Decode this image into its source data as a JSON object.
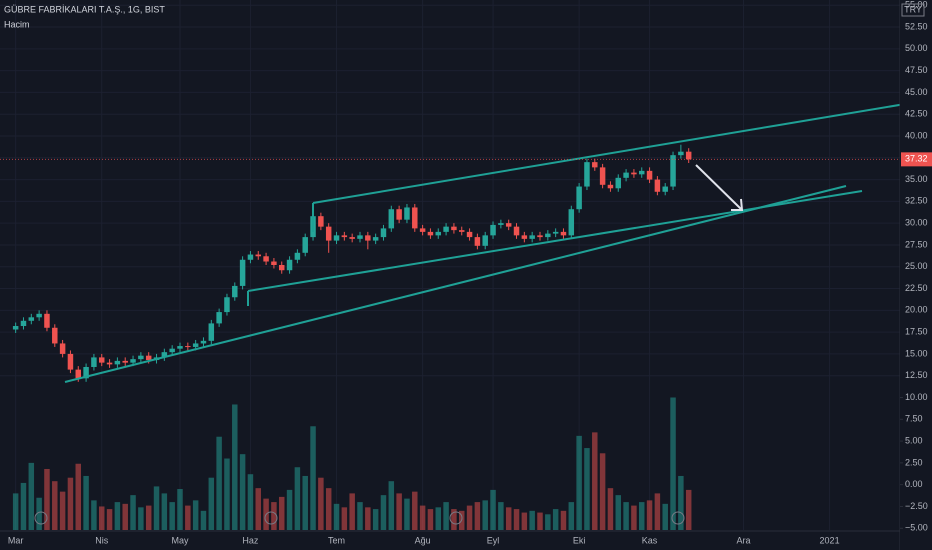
{
  "header": {
    "title": "GÜBRE FABRİKALARI T.A.Ş., 1G, BIST",
    "indicator": "Hacim",
    "currency": "TRY"
  },
  "chart_data": {
    "type": "candlestick",
    "up_color": "#26a69a",
    "down_color": "#ef5350",
    "grid": true,
    "open": [
      17.8,
      18.2,
      18.8,
      19.2,
      19.6,
      18.0,
      16.2,
      15.0,
      13.2,
      12.2,
      13.5,
      14.6,
      14.0,
      13.8,
      14.2,
      14.0,
      14.4,
      14.8,
      14.3,
      14.6,
      15.2,
      15.6,
      15.9,
      15.8,
      16.2,
      16.5,
      18.5,
      19.8,
      21.5,
      22.8,
      25.8,
      26.4,
      26.2,
      25.6,
      25.2,
      24.6,
      25.8,
      26.6,
      28.4,
      30.8,
      29.6,
      28.0,
      28.6,
      28.4,
      28.2,
      28.6,
      28.0,
      28.4,
      29.4,
      31.6,
      30.4,
      31.8,
      29.4,
      29.0,
      28.6,
      29.0,
      29.6,
      29.2,
      29.0,
      28.4,
      27.4,
      28.6,
      29.8,
      30.0,
      29.6,
      28.6,
      28.2,
      28.6,
      28.4,
      28.8,
      29.0,
      28.6,
      31.6,
      34.2,
      37.0,
      36.4,
      34.4,
      34.0,
      35.2,
      35.8,
      35.6,
      36.0,
      35.0,
      33.6,
      34.2,
      37.8,
      38.2
    ],
    "high": [
      18.6,
      19.2,
      19.6,
      20.0,
      20.0,
      18.4,
      16.6,
      15.4,
      13.6,
      13.9,
      15.0,
      15.0,
      14.4,
      14.6,
      14.6,
      14.8,
      15.2,
      15.2,
      15.0,
      15.6,
      16.0,
      16.3,
      16.3,
      16.6,
      16.9,
      18.9,
      20.2,
      21.9,
      23.2,
      26.2,
      26.8,
      26.8,
      26.6,
      26.0,
      25.6,
      26.2,
      27.0,
      28.8,
      32.0,
      31.2,
      30.0,
      29.0,
      29.0,
      28.8,
      29.0,
      29.0,
      28.8,
      29.8,
      32.0,
      32.0,
      32.2,
      32.2,
      29.8,
      29.4,
      29.4,
      30.0,
      30.0,
      29.6,
      29.4,
      28.8,
      29.0,
      30.2,
      30.4,
      30.4,
      30.0,
      29.0,
      29.0,
      29.0,
      29.2,
      29.4,
      29.4,
      32.0,
      34.6,
      37.4,
      37.4,
      36.8,
      34.8,
      35.6,
      36.2,
      36.2,
      36.4,
      36.4,
      35.4,
      34.6,
      38.2,
      39.0,
      38.6
    ],
    "low": [
      17.4,
      17.8,
      18.4,
      18.8,
      17.6,
      15.8,
      14.6,
      12.8,
      11.8,
      11.8,
      13.1,
      13.6,
      13.4,
      13.4,
      13.6,
      13.6,
      14.0,
      13.9,
      13.9,
      14.2,
      14.8,
      15.2,
      15.4,
      15.4,
      15.8,
      16.1,
      18.1,
      19.4,
      21.1,
      22.4,
      25.4,
      25.8,
      25.2,
      24.8,
      24.2,
      24.2,
      25.4,
      26.2,
      28.0,
      29.2,
      26.6,
      27.6,
      28.0,
      27.8,
      27.8,
      27.0,
      27.6,
      28.0,
      29.0,
      30.0,
      30.0,
      29.0,
      28.6,
      28.2,
      28.2,
      28.6,
      28.8,
      28.6,
      28.0,
      27.0,
      27.0,
      28.2,
      29.4,
      29.2,
      28.2,
      27.8,
      27.8,
      28.0,
      28.0,
      28.4,
      28.2,
      28.2,
      31.2,
      33.8,
      36.0,
      34.0,
      33.6,
      33.6,
      34.8,
      35.2,
      35.2,
      34.6,
      33.2,
      33.2,
      33.8,
      37.4,
      36.9
    ],
    "close": [
      18.2,
      18.8,
      19.2,
      19.6,
      18.0,
      16.2,
      15.0,
      13.2,
      12.2,
      13.5,
      14.6,
      14.0,
      13.8,
      14.2,
      14.0,
      14.4,
      14.8,
      14.3,
      14.6,
      15.2,
      15.6,
      15.9,
      15.8,
      16.2,
      16.5,
      18.5,
      19.8,
      21.5,
      22.8,
      25.8,
      26.4,
      26.2,
      25.6,
      25.2,
      24.6,
      25.8,
      26.6,
      28.4,
      30.8,
      29.6,
      28.0,
      28.6,
      28.4,
      28.2,
      28.6,
      28.0,
      28.4,
      29.4,
      31.6,
      30.4,
      31.8,
      29.4,
      29.0,
      28.6,
      29.0,
      29.6,
      29.2,
      29.0,
      28.4,
      27.4,
      28.6,
      29.8,
      30.0,
      29.6,
      28.6,
      28.2,
      28.6,
      28.4,
      28.8,
      29.0,
      28.6,
      31.6,
      34.2,
      37.0,
      36.4,
      34.4,
      34.0,
      35.2,
      35.8,
      35.6,
      36.0,
      35.0,
      33.6,
      34.2,
      37.8,
      38.2,
      37.32
    ],
    "volume": [
      -1.0,
      0.2,
      2.5,
      -1.5,
      1.8,
      0.4,
      -0.8,
      0.8,
      2.4,
      1.0,
      -1.8,
      -2.5,
      -2.8,
      -2.0,
      -2.2,
      -1.2,
      -2.6,
      -2.4,
      -0.2,
      -1.0,
      -2.0,
      -0.5,
      -2.4,
      -1.8,
      -3.0,
      0.8,
      5.5,
      3.0,
      9.2,
      3.5,
      1.2,
      -0.4,
      -1.6,
      -2.0,
      -1.4,
      -0.6,
      2.0,
      1.0,
      6.7,
      0.8,
      -0.4,
      -2.2,
      -2.6,
      -1.0,
      -2.0,
      -2.6,
      -2.8,
      -1.2,
      0.4,
      -1.0,
      -1.6,
      -0.8,
      -2.4,
      -2.8,
      -2.6,
      -2.0,
      -2.8,
      -3.0,
      -2.4,
      -2.0,
      -1.8,
      -0.6,
      -2.0,
      -2.6,
      -2.8,
      -3.2,
      -3.0,
      -3.2,
      -3.4,
      -2.8,
      -3.0,
      -2.0,
      5.6,
      4.2,
      6.0,
      3.6,
      -0.4,
      -1.2,
      -2.0,
      -2.4,
      -2.0,
      -1.8,
      -1.0,
      -2.2,
      10.0,
      1.0,
      -0.6
    ],
    "xlim": [
      -2,
      113
    ],
    "xticks": [
      {
        "value": 0,
        "label": "Mar"
      },
      {
        "value": 11,
        "label": "Nis"
      },
      {
        "value": 21,
        "label": "May"
      },
      {
        "value": 30,
        "label": "Haz"
      },
      {
        "value": 41,
        "label": "Tem"
      },
      {
        "value": 52,
        "label": "Ağu"
      },
      {
        "value": 61,
        "label": "Eyl"
      },
      {
        "value": 72,
        "label": "Eki"
      },
      {
        "value": 81,
        "label": "Kas"
      },
      {
        "value": 93,
        "label": "Ara"
      },
      {
        "value": 104,
        "label": "2021"
      }
    ],
    "ylim": [
      -5.2,
      55.6
    ],
    "yticks": [
      {
        "value": 55,
        "label": "55.00"
      },
      {
        "value": 52.5,
        "label": "52.50"
      },
      {
        "value": 50,
        "label": "50.00"
      },
      {
        "value": 47.5,
        "label": "47.50"
      },
      {
        "value": 45,
        "label": "45.00"
      },
      {
        "value": 42.5,
        "label": "42.50"
      },
      {
        "value": 40,
        "label": "40.00"
      },
      {
        "value": 37.5,
        "label": "37.50"
      },
      {
        "value": 35,
        "label": "35.00"
      },
      {
        "value": 32.5,
        "label": "32.50"
      },
      {
        "value": 30,
        "label": "30.00"
      },
      {
        "value": 27.5,
        "label": "27.50"
      },
      {
        "value": 25,
        "label": "25.00"
      },
      {
        "value": 22.5,
        "label": "22.50"
      },
      {
        "value": 20,
        "label": "20.00"
      },
      {
        "value": 17.5,
        "label": "17.50"
      },
      {
        "value": 15,
        "label": "15.00"
      },
      {
        "value": 12.5,
        "label": "12.50"
      }
    ],
    "y2lim": [
      -5.2,
      55.6
    ],
    "y2ticks": [
      {
        "value": 10,
        "label": "10.00"
      },
      {
        "value": 7.5,
        "label": "7.50"
      },
      {
        "value": 5,
        "label": "5.00"
      },
      {
        "value": 2.5,
        "label": "2.50"
      },
      {
        "value": 0,
        "label": "0.00"
      },
      {
        "value": -2.5,
        "label": "−2.50"
      },
      {
        "value": -5,
        "label": "−5.00"
      }
    ]
  }
}
